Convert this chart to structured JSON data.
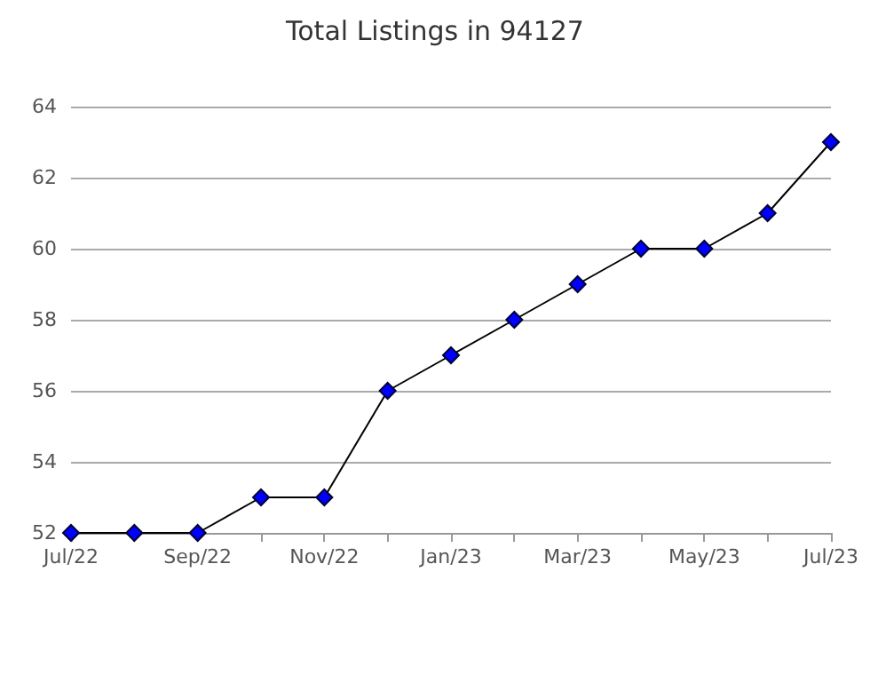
{
  "chart_data": {
    "type": "line",
    "title": "Total Listings in 94127",
    "categories": [
      "Jul/22",
      null,
      "Sep/22",
      null,
      "Nov/22",
      null,
      "Jan/23",
      null,
      "Mar/23",
      null,
      "May/23",
      null,
      "Jul/23"
    ],
    "series": [
      {
        "color": "#0000ff",
        "values": [
          52,
          52,
          52,
          53,
          53,
          56,
          57,
          58,
          59,
          60,
          60,
          61,
          63
        ]
      }
    ],
    "ylim": [
      52,
      64
    ],
    "yticks": [
      52,
      54,
      56,
      58,
      60,
      62,
      64
    ],
    "grid": "y",
    "marker": "diamond",
    "line_style": "solid"
  }
}
